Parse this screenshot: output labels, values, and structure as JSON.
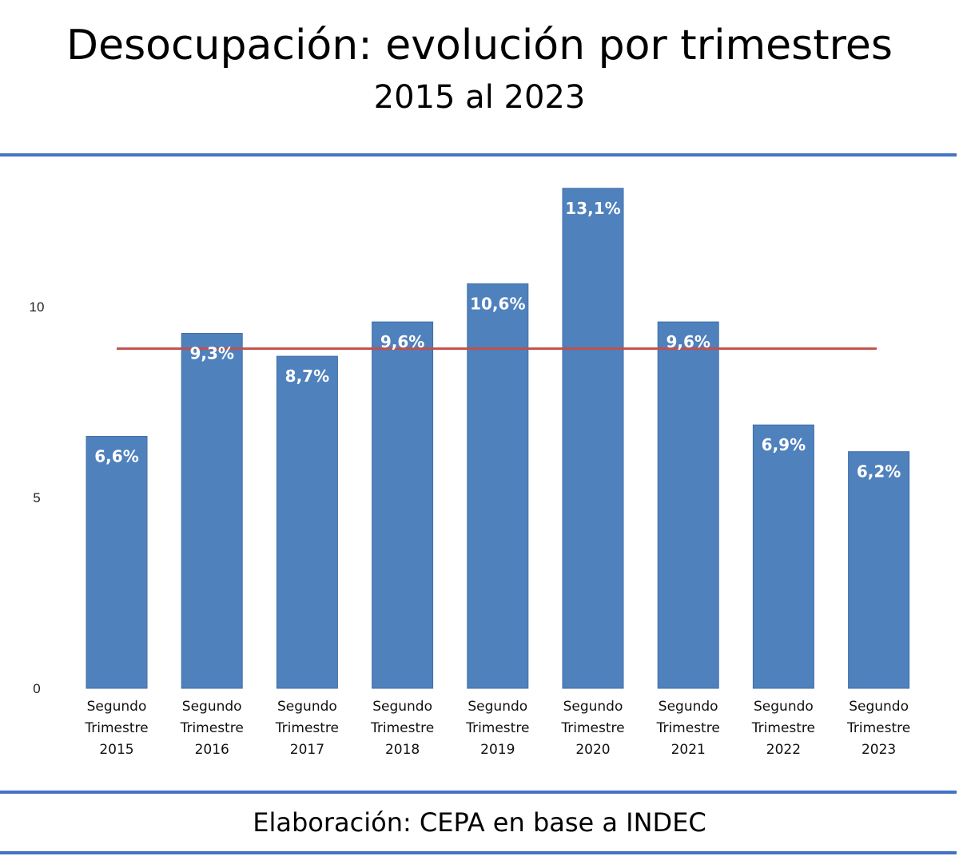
{
  "header": {
    "title": "Desocupación: evolución por trimestres",
    "subtitle": "2015 al 2023"
  },
  "footer": {
    "source": "Elaboración: CEPA en base a INDEC"
  },
  "colors": {
    "bar": "#4f81bd",
    "average_line": "#c0504d",
    "rule": "#4472c4"
  },
  "chart_data": {
    "type": "bar",
    "title": "Desocupación: evolución por trimestres",
    "subtitle": "2015 al 2023",
    "xlabel": "",
    "ylabel": "",
    "categories": [
      [
        "Segundo",
        "Trimestre",
        "2015"
      ],
      [
        "Segundo",
        "Trimestre",
        "2016"
      ],
      [
        "Segundo",
        "Trimestre",
        "2017"
      ],
      [
        "Segundo",
        "Trimestre",
        "2018"
      ],
      [
        "Segundo",
        "Trimestre",
        "2019"
      ],
      [
        "Segundo",
        "Trimestre",
        "2020"
      ],
      [
        "Segundo",
        "Trimestre",
        "2021"
      ],
      [
        "Segundo",
        "Trimestre",
        "2022"
      ],
      [
        "Segundo",
        "Trimestre",
        "2023"
      ]
    ],
    "values": [
      6.6,
      9.3,
      8.7,
      9.6,
      10.6,
      13.1,
      9.6,
      6.9,
      6.2
    ],
    "data_labels": [
      "6,6%",
      "9,3%",
      "8,7%",
      "9,6%",
      "10,6%",
      "13,1%",
      "9,6%",
      "6,9%",
      "6,2%"
    ],
    "y_ticks": [
      0,
      5,
      10
    ],
    "ylim": [
      0,
      13.1
    ],
    "reference_line": 8.9,
    "grid": false,
    "legend": "none"
  }
}
